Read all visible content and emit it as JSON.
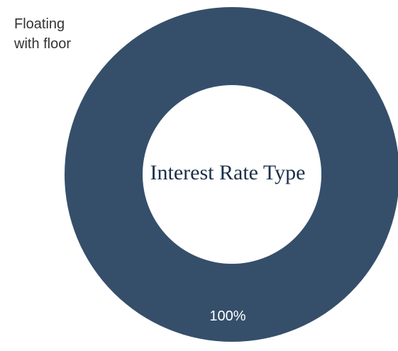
{
  "chart_data": {
    "type": "pie",
    "donut": true,
    "center_title": "Interest Rate\nType",
    "slices": [
      {
        "label": "Floating\nwith floor",
        "value": 100,
        "display_label": "100%",
        "color": "#354f6b"
      }
    ],
    "legend": "top-left"
  }
}
